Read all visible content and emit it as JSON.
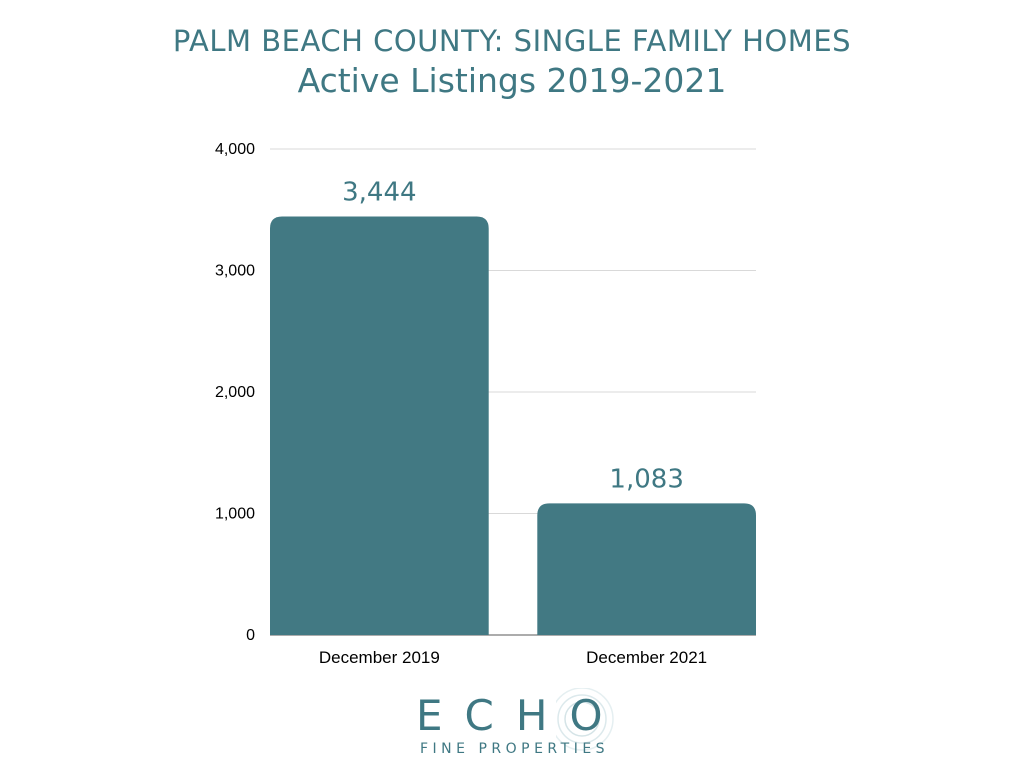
{
  "chart_data": {
    "type": "bar",
    "title": "PALM BEACH COUNTY: SINGLE FAMILY HOMES",
    "subtitle": "Active Listings 2019-2021",
    "categories": [
      "December 2019",
      "December 2021"
    ],
    "values": [
      3444,
      1083
    ],
    "data_labels": [
      "3,444",
      "1,083"
    ],
    "ylim": [
      0,
      4000
    ],
    "yticks": [
      0,
      1000,
      2000,
      3000,
      4000
    ],
    "ytick_labels": [
      "0",
      "1,000",
      "2,000",
      "3,000",
      "4,000"
    ],
    "grid": true,
    "bar_color": "#427983",
    "text_color": "#3f7883",
    "grid_color": "#d9d9d9"
  },
  "logo": {
    "word": "ECHO",
    "tagline": "FINE PROPERTIES"
  }
}
